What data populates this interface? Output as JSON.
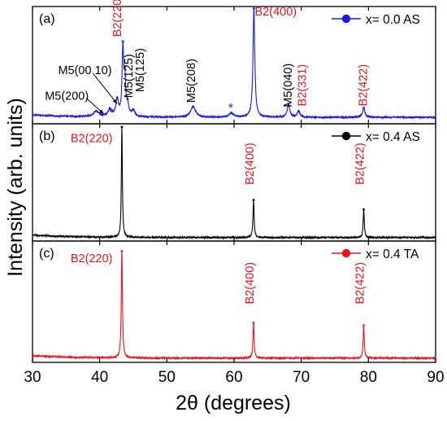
{
  "chart_data": {
    "type": "line",
    "xlabel": "2θ (degrees)",
    "ylabel": "Intensity (arb. units)",
    "xlim": [
      30,
      90
    ],
    "x_ticks": [
      30,
      40,
      50,
      60,
      70,
      80,
      90
    ],
    "x_tick_labels": [
      "30",
      "40",
      "50",
      "60",
      "70",
      "80",
      "90"
    ],
    "grid": false,
    "colors": {
      "black": "#000000",
      "red": "#e8141b",
      "blue": "#1a1ad8"
    },
    "panels": [
      {
        "id": "a",
        "tag": "(a)",
        "legend": "x= 0.0 AS",
        "legend_placement": "top-right",
        "color": "#1a1ad8",
        "baseline": 0.055,
        "peaks": [
          {
            "x": 39.5,
            "h": 0.045,
            "w": 0.5
          },
          {
            "x": 41.5,
            "h": 0.06,
            "w": 0.3
          },
          {
            "x": 42.6,
            "h": 0.14,
            "w": 0.25
          },
          {
            "x": 43.45,
            "h": 0.57,
            "w": 0.14
          },
          {
            "x": 43.75,
            "h": 0.3,
            "w": 0.14
          },
          {
            "x": 44.15,
            "h": 0.09,
            "w": 0.2
          },
          {
            "x": 45.0,
            "h": 0.05,
            "w": 0.3
          },
          {
            "x": 53.9,
            "h": 0.09,
            "w": 0.45
          },
          {
            "x": 59.6,
            "h": 0.035,
            "w": 0.4
          },
          {
            "x": 62.95,
            "h": 0.93,
            "w": 0.16
          },
          {
            "x": 68.1,
            "h": 0.11,
            "w": 0.22
          },
          {
            "x": 69.6,
            "h": 0.05,
            "w": 0.25
          },
          {
            "x": 79.3,
            "h": 0.08,
            "w": 0.2
          }
        ],
        "labels": [
          {
            "text": "B2(220)",
            "color": "red",
            "x": 43.2,
            "frac": 0.74,
            "rot": true
          },
          {
            "text": "B2(400)",
            "color": "red",
            "x": 66.2,
            "frac": 0.96,
            "rot": false
          },
          {
            "text": "M5(00 10)",
            "color": "black",
            "x": 37.8,
            "frac": 0.46,
            "rot": false
          },
          {
            "text": "M5(200)",
            "color": "black",
            "x": 35.1,
            "frac": 0.24,
            "rot": false
          },
          {
            "text": "M5(125)",
            "color": "black",
            "x": 44.9,
            "frac": 0.22,
            "rot": true
          },
          {
            "text": "M5(125)",
            "color": "black",
            "x": 46.6,
            "frac": 0.27,
            "rot": true
          },
          {
            "text": "M5(208)",
            "color": "black",
            "x": 54.2,
            "frac": 0.18,
            "rot": true
          },
          {
            "text": "M5(040)",
            "color": "black",
            "x": 68.6,
            "frac": 0.14,
            "rot": true
          },
          {
            "text": "B2(331)",
            "color": "red",
            "x": 70.7,
            "frac": 0.15,
            "rot": true
          },
          {
            "text": "B2(422)",
            "color": "red",
            "x": 79.8,
            "frac": 0.15,
            "rot": true
          },
          {
            "text": "*",
            "color": "blue",
            "x": 41.7,
            "frac": 0.1,
            "rot": false
          },
          {
            "text": "*",
            "color": "blue",
            "x": 59.5,
            "frac": 0.14,
            "rot": false
          }
        ]
      },
      {
        "id": "b",
        "tag": "(b)",
        "legend": "x= 0.4 AS",
        "legend_placement": "top-right",
        "color": "#000000",
        "baseline": 0.03,
        "peaks": [
          {
            "x": 43.3,
            "h": 0.94,
            "w": 0.09
          },
          {
            "x": 62.9,
            "h": 0.32,
            "w": 0.1
          },
          {
            "x": 79.3,
            "h": 0.24,
            "w": 0.1
          }
        ],
        "labels": [
          {
            "text": "B2(220)",
            "color": "red",
            "x": 38.8,
            "frac": 0.88,
            "rot": false
          },
          {
            "text": "B2(400)",
            "color": "red",
            "x": 62.9,
            "frac": 0.48,
            "rot": true
          },
          {
            "text": "B2(422)",
            "color": "red",
            "x": 79.3,
            "frac": 0.48,
            "rot": true
          }
        ]
      },
      {
        "id": "c",
        "tag": "(c)",
        "legend": "x= 0.4 TA",
        "legend_placement": "top-right",
        "color": "#e8141b",
        "baseline": 0.035,
        "peaks": [
          {
            "x": 43.3,
            "h": 0.88,
            "w": 0.1
          },
          {
            "x": 62.9,
            "h": 0.29,
            "w": 0.1
          },
          {
            "x": 79.3,
            "h": 0.27,
            "w": 0.1
          }
        ],
        "labels": [
          {
            "text": "B2(220)",
            "color": "red",
            "x": 38.8,
            "frac": 0.86,
            "rot": false
          },
          {
            "text": "B2(400)",
            "color": "red",
            "x": 62.9,
            "frac": 0.48,
            "rot": true
          },
          {
            "text": "B2(422)",
            "color": "red",
            "x": 79.3,
            "frac": 0.48,
            "rot": true
          }
        ]
      }
    ]
  }
}
